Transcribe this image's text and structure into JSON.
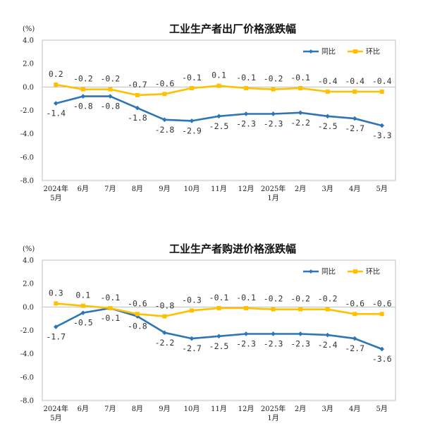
{
  "chart_data": [
    {
      "type": "line",
      "title": "工业生产者出厂价格涨跌幅",
      "unit": "(%)",
      "ylim": [
        -8.0,
        4.0
      ],
      "yticks": [
        "4.0",
        "2.0",
        "0.0",
        "-2.0",
        "-4.0",
        "-6.0",
        "-8.0"
      ],
      "ytick_values": [
        4,
        2,
        0,
        -2,
        -4,
        -6,
        -8
      ],
      "categories": [
        [
          "2024年",
          "5月"
        ],
        [
          "6月"
        ],
        [
          "7月"
        ],
        [
          "8月"
        ],
        [
          "9月"
        ],
        [
          "10月"
        ],
        [
          "11月"
        ],
        [
          "12月"
        ],
        [
          "2025年",
          "1月"
        ],
        [
          "2月"
        ],
        [
          "3月"
        ],
        [
          "4月"
        ],
        [
          "5月"
        ]
      ],
      "series": [
        {
          "name": "同比",
          "color": "#2E75B6",
          "values": [
            -1.4,
            -0.8,
            -0.8,
            -1.8,
            -2.8,
            -2.9,
            -2.5,
            -2.3,
            -2.3,
            -2.2,
            -2.5,
            -2.7,
            -3.3
          ],
          "labels": [
            "-1.4",
            "-0.8",
            "-0.8",
            "-1.8",
            "-2.8",
            "-2.9",
            "-2.5",
            "-2.3",
            "-2.3",
            "-2.2",
            "-2.5",
            "-2.7",
            "-3.3"
          ],
          "label_pos": "below"
        },
        {
          "name": "环比",
          "color": "#FFC000",
          "values": [
            0.2,
            -0.2,
            -0.2,
            -0.7,
            -0.6,
            -0.1,
            0.1,
            -0.1,
            -0.2,
            -0.1,
            -0.4,
            -0.4,
            -0.4
          ],
          "labels": [
            "0.2",
            "-0.2",
            "-0.2",
            "-0.7",
            "-0.6",
            "-0.1",
            "0.1",
            "-0.1",
            "-0.2",
            "-0.1",
            "-0.4",
            "-0.4",
            "-0.4"
          ],
          "label_pos": "above"
        }
      ],
      "legend": "top-right",
      "grid": false
    },
    {
      "type": "line",
      "title": "工业生产者购进价格涨跌幅",
      "unit": "(%)",
      "ylim": [
        -8.0,
        4.0
      ],
      "yticks": [
        "4.0",
        "2.0",
        "0.0",
        "-2.0",
        "-4.0",
        "-6.0",
        "-8.0"
      ],
      "ytick_values": [
        4,
        2,
        0,
        -2,
        -4,
        -6,
        -8
      ],
      "categories": [
        [
          "2024年",
          "5月"
        ],
        [
          "6月"
        ],
        [
          "7月"
        ],
        [
          "8月"
        ],
        [
          "9月"
        ],
        [
          "10月"
        ],
        [
          "11月"
        ],
        [
          "12月"
        ],
        [
          "2025年",
          "1月"
        ],
        [
          "2月"
        ],
        [
          "3月"
        ],
        [
          "4月"
        ],
        [
          "5月"
        ]
      ],
      "series": [
        {
          "name": "同比",
          "color": "#2E75B6",
          "values": [
            -1.7,
            -0.5,
            -0.1,
            -0.8,
            -2.2,
            -2.7,
            -2.5,
            -2.3,
            -2.3,
            -2.3,
            -2.4,
            -2.7,
            -3.6
          ],
          "labels": [
            "-1.7",
            "-0.5",
            "-0.1",
            "-0.8",
            "-2.2",
            "-2.7",
            "-2.5",
            "-2.3",
            "-2.3",
            "-2.3",
            "-2.4",
            "-2.7",
            "-3.6"
          ],
          "label_pos": "below"
        },
        {
          "name": "环比",
          "color": "#FFC000",
          "values": [
            0.3,
            0.1,
            -0.1,
            -0.6,
            -0.8,
            -0.3,
            -0.1,
            -0.1,
            -0.2,
            -0.2,
            -0.2,
            -0.6,
            -0.6
          ],
          "labels": [
            "0.3",
            "0.1",
            "-0.1",
            "-0.6",
            "-0.8",
            "-0.3",
            "-0.1",
            "-0.1",
            "-0.2",
            "-0.2",
            "-0.2",
            "-0.6",
            "-0.6"
          ],
          "label_pos": "above"
        }
      ],
      "legend": "top-right",
      "grid": false
    }
  ]
}
